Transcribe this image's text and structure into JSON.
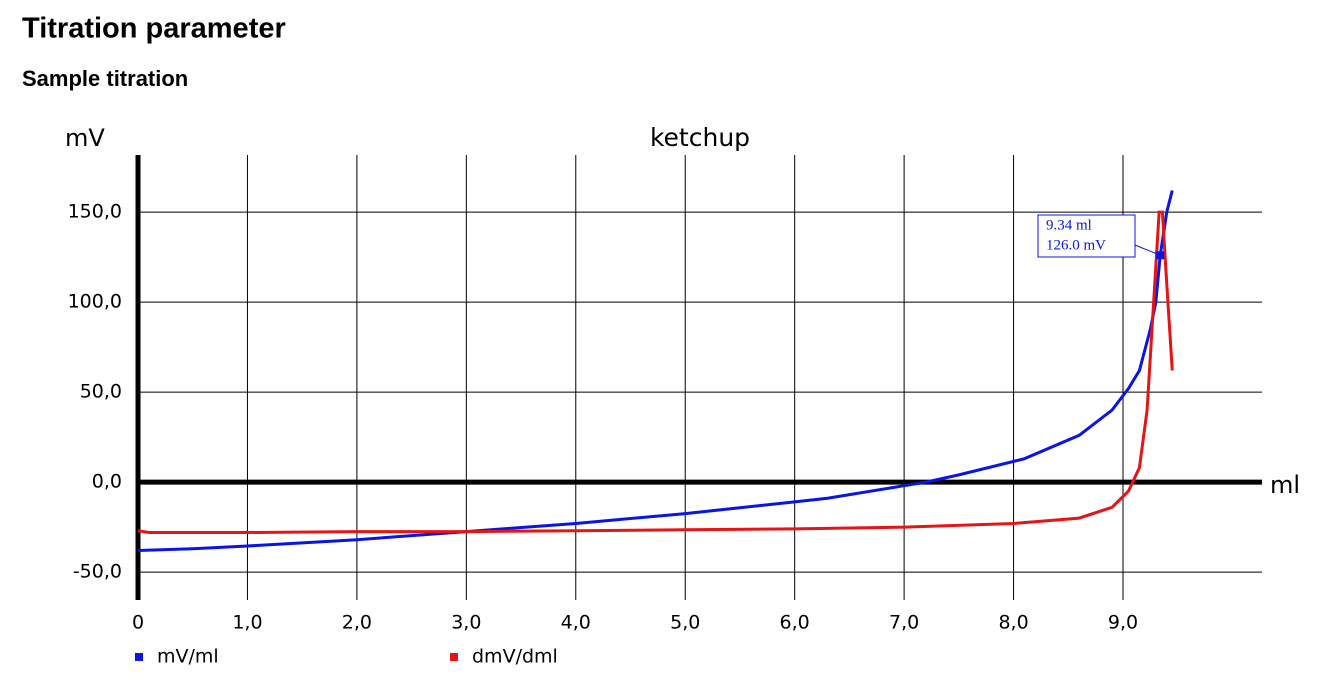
{
  "header": {
    "title": "Titration parameter",
    "subtitle": "Sample titration"
  },
  "chart_data": {
    "type": "line",
    "title": "ketchup",
    "x_label": "ml",
    "y_label": "mV",
    "xlim": [
      0,
      10.27
    ],
    "ylim": [
      -65.5,
      181.7
    ],
    "xticks": [
      0,
      {
        "value": 1,
        "label": "1,0"
      },
      {
        "value": 2,
        "label": "2,0"
      },
      {
        "value": 3,
        "label": "3,0"
      },
      {
        "value": 4,
        "label": "4,0"
      },
      {
        "value": 5,
        "label": "5,0"
      },
      {
        "value": 6,
        "label": "6,0"
      },
      {
        "value": 7,
        "label": "7,0"
      },
      {
        "value": 8,
        "label": "8,0"
      },
      {
        "value": 9,
        "label": "9,0"
      }
    ],
    "yticks": [
      {
        "value": -50,
        "label": "-50,0"
      },
      {
        "value": 0,
        "label": "0,0"
      },
      {
        "value": 50,
        "label": "50,0"
      },
      {
        "value": 100,
        "label": "100,0"
      },
      {
        "value": 150,
        "label": "150,0"
      }
    ],
    "grid": true,
    "series": [
      {
        "name": "mV/ml",
        "color": "#0a14e6",
        "x": [
          0,
          0.5,
          1,
          2,
          3,
          4,
          5,
          6,
          6.3,
          7,
          7.2,
          7.5,
          8.1,
          8.6,
          8.9,
          9.05,
          9.15,
          9.25,
          9.3,
          9.34,
          9.4,
          9.45
        ],
        "values": [
          -38,
          -37,
          -35.5,
          -32,
          -27.5,
          -23,
          -17.5,
          -11,
          -9,
          -2,
          0,
          4,
          13,
          26,
          40,
          52,
          62,
          85,
          100,
          126,
          150,
          162
        ]
      },
      {
        "name": "dmV/dml",
        "color": "#e61414",
        "x": [
          0,
          0.1,
          1,
          2,
          3,
          4,
          5,
          6,
          7,
          8,
          8.6,
          8.9,
          9.05,
          9.15,
          9.22,
          9.28,
          9.33,
          9.36,
          9.4,
          9.45
        ],
        "values": [
          -27,
          -28,
          -28,
          -27.5,
          -27.5,
          -27,
          -26.5,
          -26,
          -25,
          -23,
          -20,
          -14,
          -5,
          8,
          40,
          100,
          150,
          150,
          110,
          62
        ]
      }
    ],
    "annotation": {
      "x": 9.34,
      "y": 126,
      "labels": [
        "9.34 ml",
        "126.0 mV"
      ]
    }
  }
}
